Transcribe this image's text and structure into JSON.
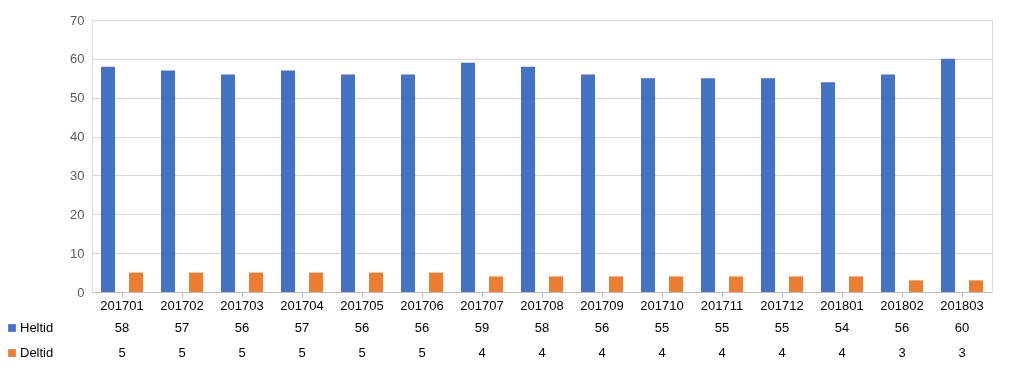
{
  "chart_data": {
    "type": "bar",
    "categories": [
      "201701",
      "201702",
      "201703",
      "201704",
      "201705",
      "201706",
      "201707",
      "201708",
      "201709",
      "201710",
      "201711",
      "201712",
      "201801",
      "201802",
      "201803"
    ],
    "series": [
      {
        "name": "Heltid",
        "color": "#4472c4",
        "values": [
          58,
          57,
          56,
          57,
          56,
          56,
          59,
          58,
          56,
          55,
          55,
          55,
          54,
          56,
          60
        ]
      },
      {
        "name": "Deltid",
        "color": "#ed7d31",
        "values": [
          5,
          5,
          5,
          5,
          5,
          5,
          4,
          4,
          4,
          4,
          4,
          4,
          4,
          3,
          3
        ]
      }
    ],
    "ylim": [
      0,
      70
    ],
    "yticks": [
      0,
      10,
      20,
      30,
      40,
      50,
      60,
      70
    ],
    "grid": "y",
    "data_labels": true,
    "legend": "bottom"
  }
}
